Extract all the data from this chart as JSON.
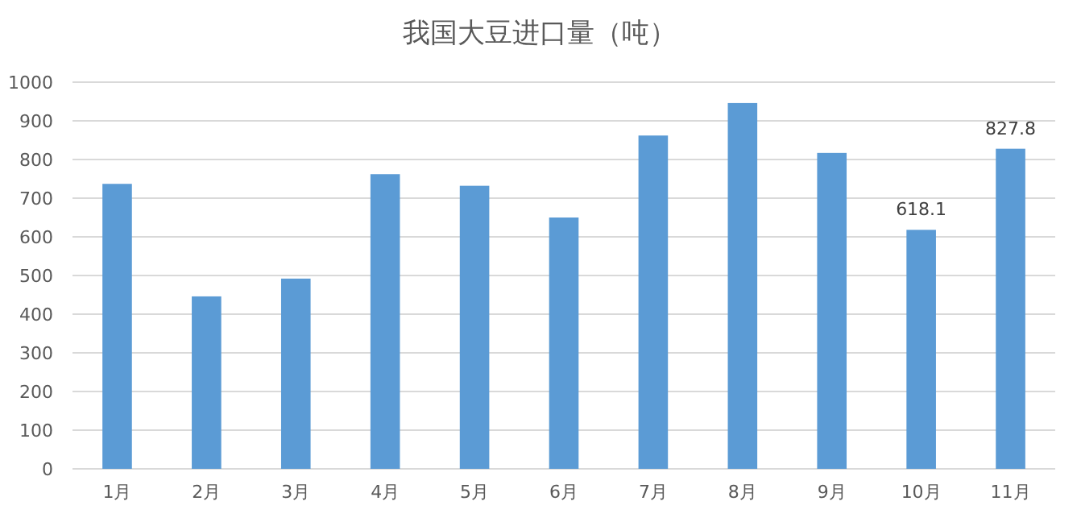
{
  "chart_data": {
    "type": "bar",
    "title": "我国大豆进口量（吨）",
    "categories": [
      "1月",
      "2月",
      "3月",
      "4月",
      "5月",
      "6月",
      "7月",
      "8月",
      "9月",
      "10月",
      "11月"
    ],
    "values": [
      737,
      446,
      492,
      762,
      732,
      650,
      862,
      946,
      817,
      618.1,
      827.8
    ],
    "value_labels": [
      null,
      null,
      null,
      null,
      null,
      null,
      null,
      null,
      null,
      "618.1",
      "827.8"
    ],
    "color": "#5b9bd5",
    "ylim": [
      0,
      1000
    ],
    "yticks": [
      0,
      100,
      200,
      300,
      400,
      500,
      600,
      700,
      800,
      900,
      1000
    ],
    "grid": "y"
  }
}
